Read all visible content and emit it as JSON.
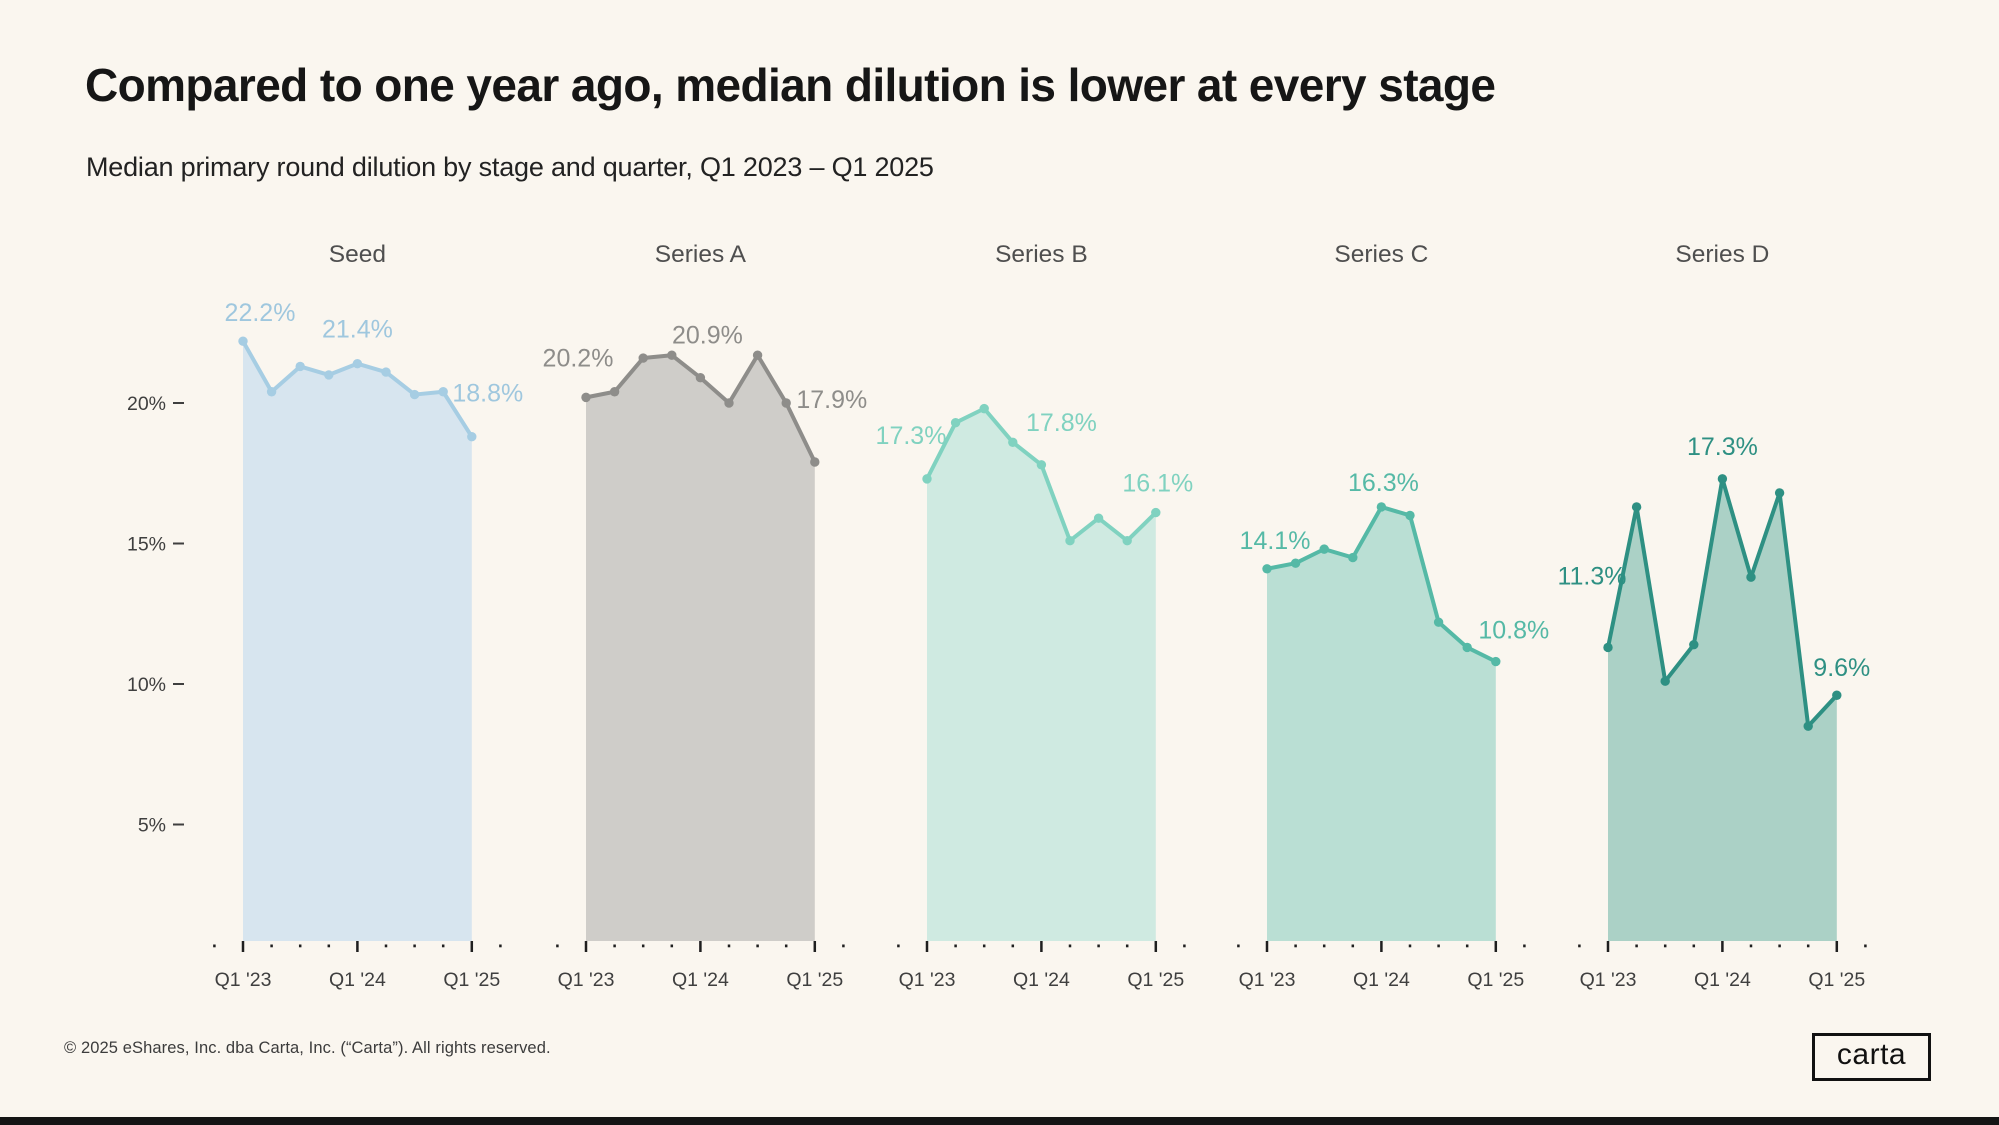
{
  "header": {
    "title": "Compared to one year ago, median dilution is lower at every stage",
    "subtitle": "Median primary round dilution by stage and quarter,  Q1 2023 – Q1 2025"
  },
  "chart_data": {
    "type": "area",
    "unit": "percent",
    "x_categories": [
      "Q1 '23",
      "Q2 '23",
      "Q3 '23",
      "Q4 '23",
      "Q1 '24",
      "Q2 '24",
      "Q3 '24",
      "Q4 '24",
      "Q1 '25"
    ],
    "x_axis_shown_labels": [
      "Q1 '23",
      "Q1 '24",
      "Q1 '25"
    ],
    "y_ticks": [
      {
        "label": "20%",
        "value": 20
      },
      {
        "label": "15%",
        "value": 15
      },
      {
        "label": "10%",
        "value": 10
      },
      {
        "label": "5%",
        "value": 5
      }
    ],
    "grid": false,
    "legend": false,
    "charts": [
      {
        "name": "Seed",
        "line_color": "#a6cde3",
        "fill_color": "#d7e5ef",
        "label_color": "#9fc7de",
        "values": [
          22.2,
          20.4,
          21.3,
          21.0,
          21.4,
          21.1,
          20.3,
          20.4,
          18.8
        ],
        "value_labels": [
          {
            "index": 0,
            "text": "22.2%"
          },
          {
            "index": 4,
            "text": "21.4%"
          },
          {
            "index": 8,
            "text": "18.8%"
          }
        ]
      },
      {
        "name": "Series A",
        "line_color": "#8e8d8a",
        "fill_color": "#cfcdc9",
        "label_color": "#8e8d8a",
        "values": [
          20.2,
          20.4,
          21.6,
          21.7,
          20.9,
          20.0,
          21.7,
          20.0,
          17.9
        ],
        "value_labels": [
          {
            "index": 0,
            "text": "20.2%"
          },
          {
            "index": 4,
            "text": "20.9%"
          },
          {
            "index": 8,
            "text": "17.9%"
          }
        ]
      },
      {
        "name": "Series B",
        "line_color": "#80d2c0",
        "fill_color": "#cfeae1",
        "label_color": "#80d2c0",
        "values": [
          17.3,
          19.3,
          19.8,
          18.6,
          17.8,
          15.1,
          15.9,
          15.1,
          16.1
        ],
        "value_labels": [
          {
            "index": 0,
            "text": "17.3%"
          },
          {
            "index": 4,
            "text": "17.8%"
          },
          {
            "index": 8,
            "text": "16.1%"
          }
        ]
      },
      {
        "name": "Series C",
        "line_color": "#55b9a6",
        "fill_color": "#badfd4",
        "label_color": "#55b9a6",
        "values": [
          14.1,
          14.3,
          14.8,
          14.5,
          16.3,
          16.0,
          12.2,
          11.3,
          10.8
        ],
        "value_labels": [
          {
            "index": 0,
            "text": "14.1%"
          },
          {
            "index": 4,
            "text": "16.3%"
          },
          {
            "index": 8,
            "text": "10.8%"
          }
        ]
      },
      {
        "name": "Series D",
        "line_color": "#2e9083",
        "fill_color": "#abd1c6",
        "label_color": "#2e9083",
        "values": [
          11.3,
          16.3,
          10.1,
          11.4,
          17.3,
          13.8,
          16.8,
          8.5,
          9.6
        ],
        "value_labels": [
          {
            "index": 0,
            "text": "11.3%"
          },
          {
            "index": 4,
            "text": "17.3%"
          },
          {
            "index": 8,
            "text": "9.6%"
          }
        ]
      }
    ]
  },
  "footer": {
    "copyright": "© 2025 eShares, Inc. dba Carta, Inc. (“Carta”). All rights reserved.",
    "logo_text": "carta"
  },
  "colors": {
    "background": "#faf6ef",
    "bottom_bar": "#141414",
    "axis_text": "#3f3f3f",
    "tick_mark": "#1f1f1f",
    "chart_title_text": "#4f4f4f"
  }
}
